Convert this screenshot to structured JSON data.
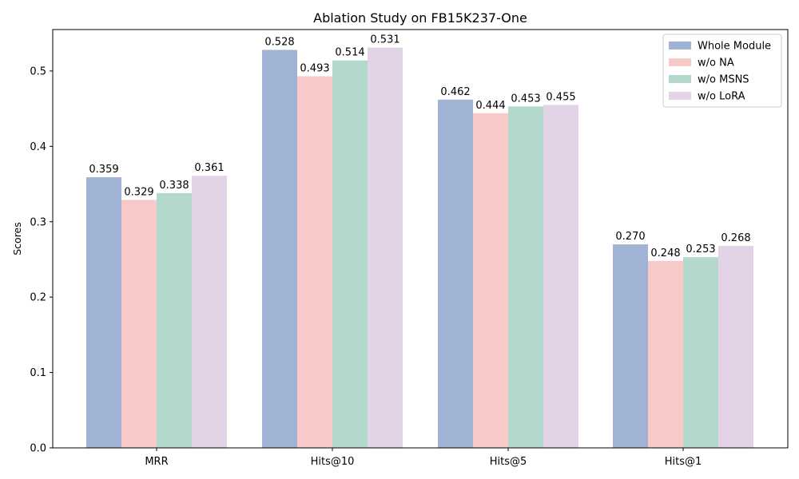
{
  "chart_data": {
    "type": "bar",
    "title": "Ablation Study on FB15K237-One",
    "xlabel": "",
    "ylabel": "Scores",
    "categories": [
      "MRR",
      "Hits@10",
      "Hits@5",
      "Hits@1"
    ],
    "ylim": [
      0,
      0.555
    ],
    "yticks": [
      "0.0",
      "0.1",
      "0.2",
      "0.3",
      "0.4",
      "0.5"
    ],
    "legend_position": "top-right",
    "grid": false,
    "series": [
      {
        "name": "Whole Module",
        "color": "#a0b3d4",
        "values": [
          0.359,
          0.528,
          0.462,
          0.27
        ],
        "labels": [
          "0.359",
          "0.528",
          "0.462",
          "0.270"
        ]
      },
      {
        "name": "w/o NA",
        "color": "#f7c9c9",
        "values": [
          0.329,
          0.493,
          0.444,
          0.248
        ],
        "labels": [
          "0.329",
          "0.493",
          "0.444",
          "0.248"
        ]
      },
      {
        "name": "w/o MSNS",
        "color": "#b3d9cd",
        "values": [
          0.338,
          0.514,
          0.453,
          0.253
        ],
        "labels": [
          "0.338",
          "0.514",
          "0.453",
          "0.253"
        ]
      },
      {
        "name": "w/o LoRA",
        "color": "#e3d3e6",
        "values": [
          0.361,
          0.531,
          0.455,
          0.268
        ],
        "labels": [
          "0.361",
          "0.531",
          "0.455",
          "0.268"
        ]
      }
    ]
  }
}
